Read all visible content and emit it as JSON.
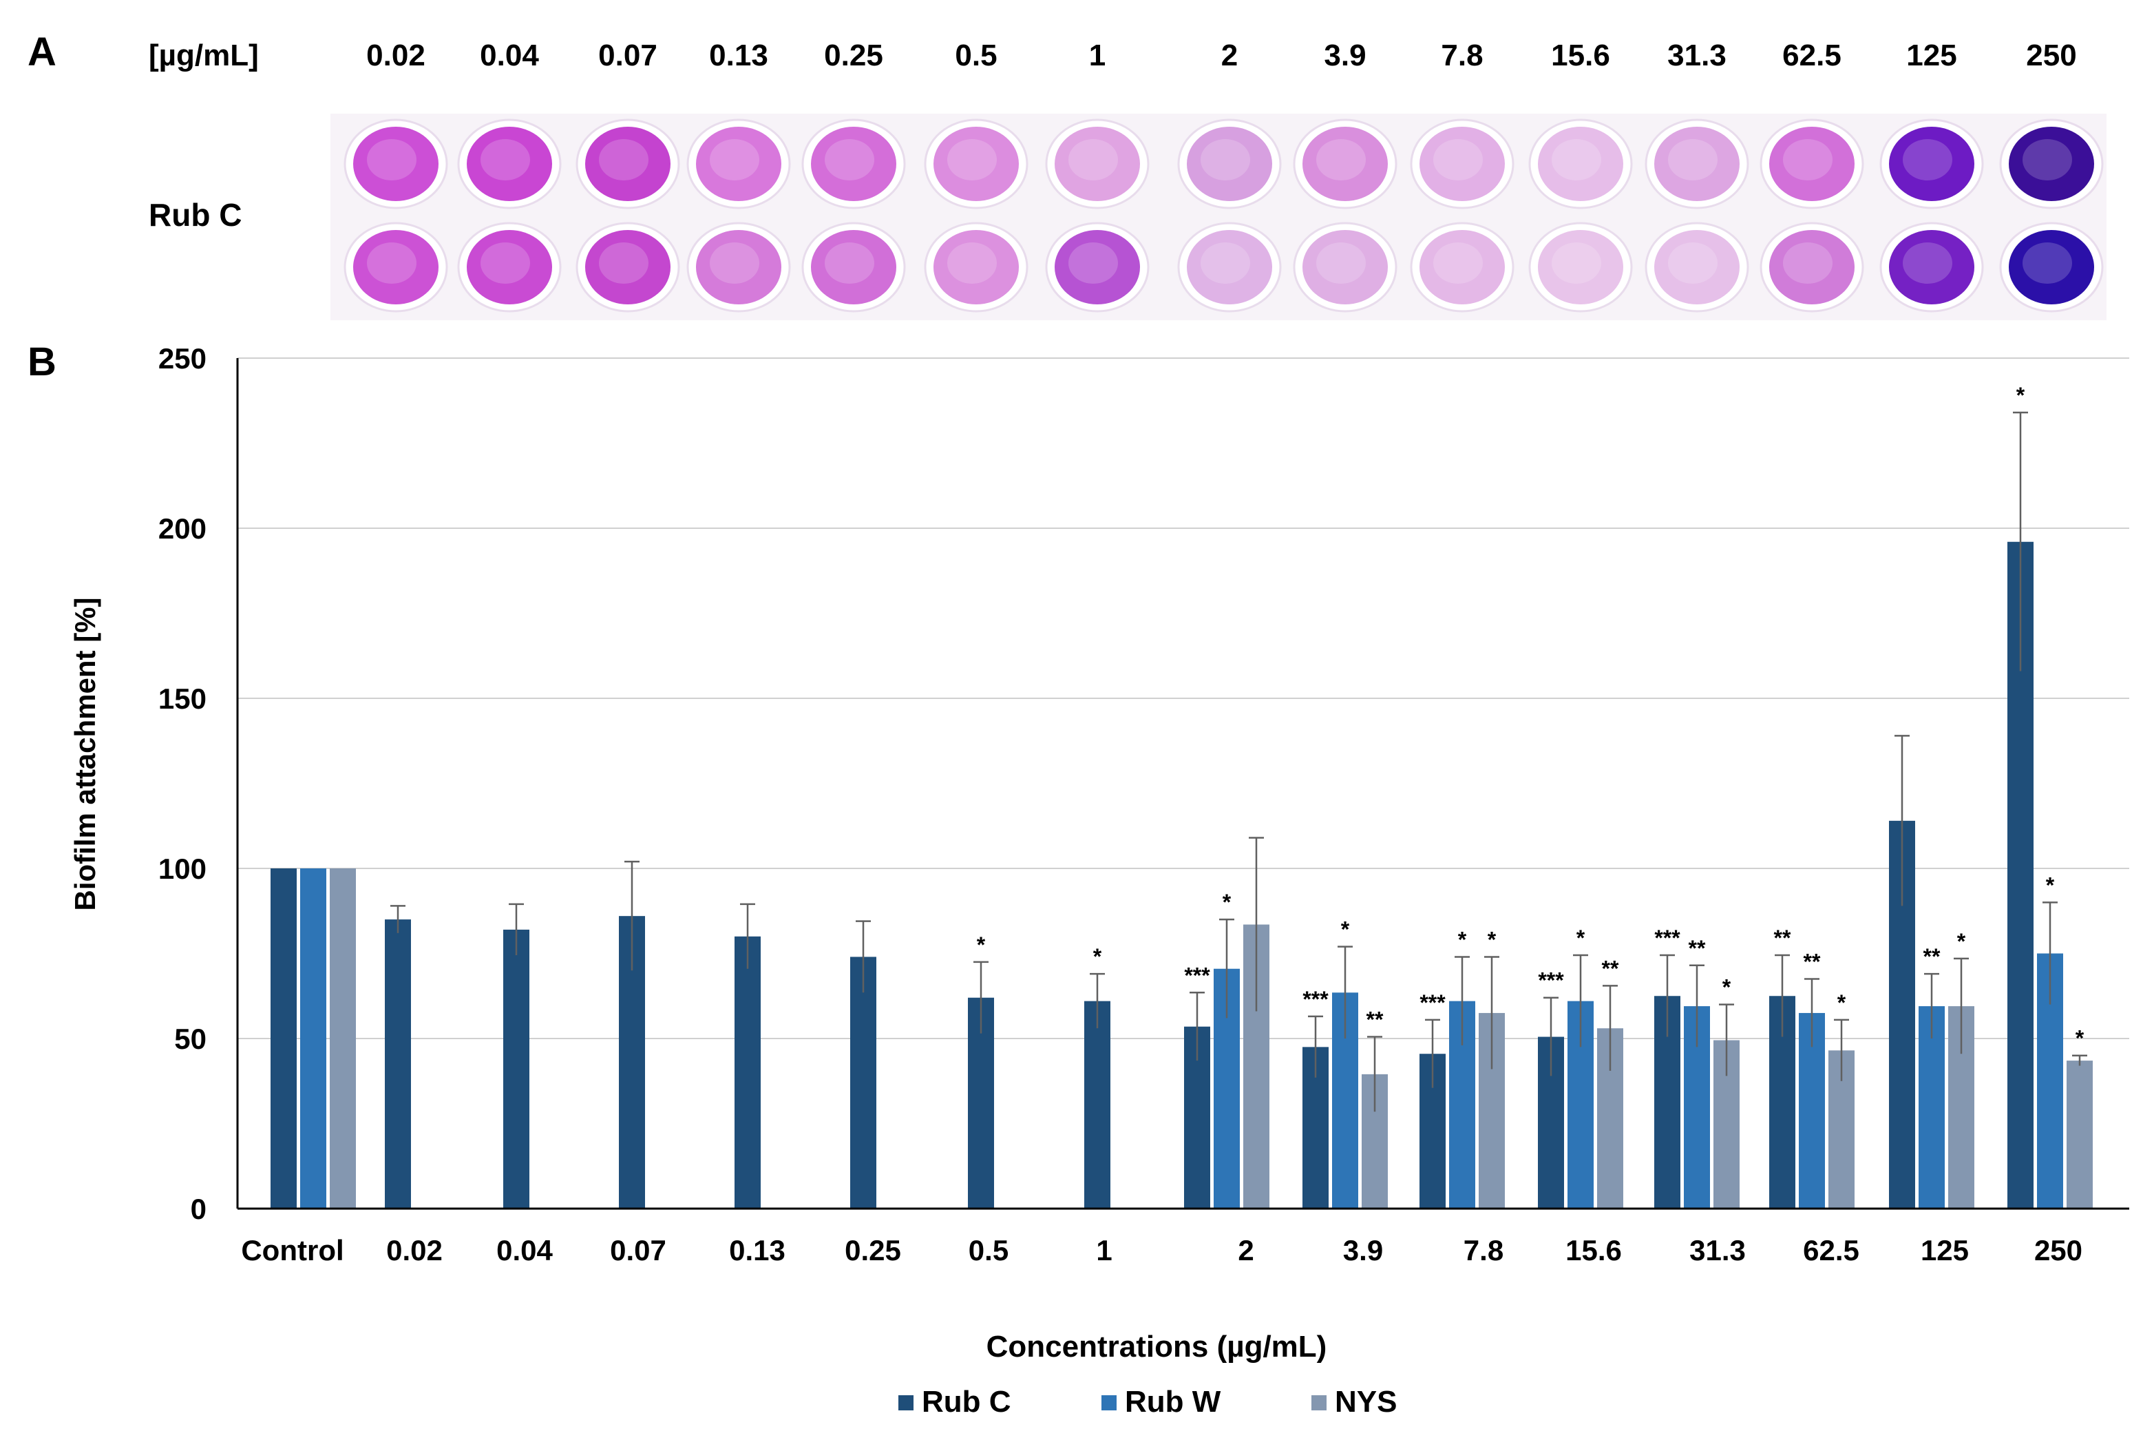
{
  "panel_a": {
    "label": "A",
    "unit_label": "[µg/mL]",
    "row_label": "Rub C",
    "concentrations": [
      "0.02",
      "0.04",
      "0.07",
      "0.13",
      "0.25",
      "0.5",
      "1",
      "2",
      "3.9",
      "7.8",
      "15.6",
      "31.3",
      "62.5",
      "125",
      "250"
    ],
    "well_colors": {
      "top": [
        "#cc4fd6",
        "#c946d3",
        "#c443cf",
        "#d878dc",
        "#d46ed9",
        "#dc8ddf",
        "#e0a4e2",
        "#d7a0e0",
        "#d98fdd",
        "#e2b0e6",
        "#e6bde9",
        "#dda6e2",
        "#d270d9",
        "#6d1bc4",
        "#3b0f98"
      ],
      "bottom": [
        "#cc52d5",
        "#c94bd3",
        "#c447cf",
        "#d57bda",
        "#d16fd8",
        "#dc91df",
        "#b653d3",
        "#dfb3e6",
        "#dfafe4",
        "#e4b8e7",
        "#e8c4ea",
        "#e6c0e9",
        "#d07cd9",
        "#7521c4",
        "#2b10a8"
      ]
    }
  },
  "panel_b": {
    "label": "B",
    "significance_markers": {
      "Rub C": [
        "",
        "",
        "",
        "",
        "",
        "",
        "*",
        "*",
        "***",
        "***",
        "***",
        "***",
        "***",
        "**",
        "",
        "*"
      ],
      "Rub W": [
        "",
        "",
        "",
        "",
        "",
        "",
        "",
        "",
        "*",
        "*",
        "*",
        "*",
        "**",
        "**",
        "**",
        "*"
      ],
      "NYS": [
        "",
        "",
        "",
        "",
        "",
        "",
        "",
        "",
        "",
        "**",
        "*",
        "**",
        "*",
        "*",
        "*",
        "*"
      ]
    }
  },
  "chart_data": {
    "type": "bar",
    "title": "",
    "xlabel": "Concentrations (µg/mL)",
    "ylabel": "Biofilm attachment [%]",
    "ylim": [
      0,
      250
    ],
    "yticks": [
      0,
      50,
      100,
      150,
      200,
      250
    ],
    "grid": true,
    "legend_position": "bottom",
    "categories": [
      "Control",
      "0.02",
      "0.04",
      "0.07",
      "0.13",
      "0.25",
      "0.5",
      "1",
      "2",
      "3.9",
      "7.8",
      "15.6",
      "31.3",
      "62.5",
      "125",
      "250"
    ],
    "series": [
      {
        "name": "Rub C",
        "color": "#1f4e79",
        "values": [
          100,
          85,
          82,
          86,
          80,
          74,
          62,
          61,
          53.5,
          47.5,
          45.5,
          50.5,
          62.5,
          62.5,
          114,
          196
        ],
        "errors": [
          0,
          4,
          7.5,
          16,
          9.5,
          10.5,
          10.5,
          8,
          10,
          9,
          10,
          11.5,
          12,
          12,
          25,
          38
        ]
      },
      {
        "name": "Rub W",
        "color": "#2e75b6",
        "values": [
          100,
          null,
          null,
          null,
          null,
          null,
          null,
          null,
          70.5,
          63.5,
          61,
          61,
          59.5,
          57.5,
          59.5,
          75
        ],
        "errors": [
          0,
          null,
          null,
          null,
          null,
          null,
          null,
          null,
          14.5,
          13.5,
          13,
          13.5,
          12,
          10,
          9.5,
          15
        ]
      },
      {
        "name": "NYS",
        "color": "#8497b0",
        "values": [
          100,
          null,
          null,
          null,
          null,
          null,
          null,
          null,
          83.5,
          39.5,
          57.5,
          53,
          49.5,
          46.5,
          59.5,
          43.5
        ],
        "errors": [
          0,
          null,
          null,
          null,
          null,
          null,
          null,
          null,
          25.5,
          11,
          16.5,
          12.5,
          10.5,
          9,
          14,
          1.5
        ]
      }
    ]
  }
}
